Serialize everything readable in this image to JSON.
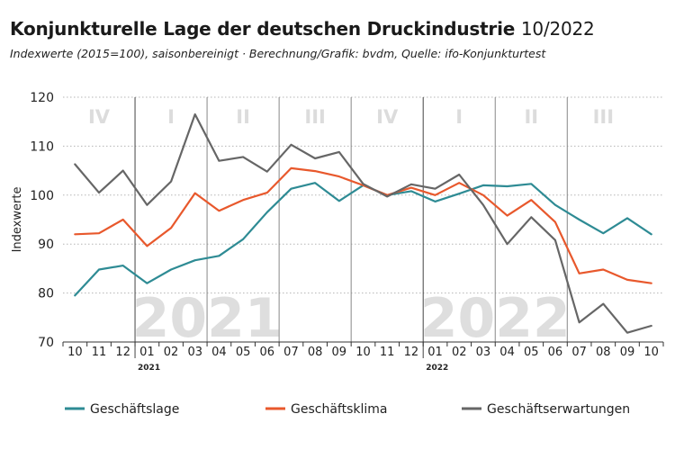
{
  "header": {
    "title": "Konjunkturelle Lage der deutschen Druckindustrie",
    "title_suffix": "10/2022",
    "subtitle": "Indexwerte (2015=100), saisonbereinigt · Berechnung/Grafik: bvdm, Quelle: ifo-Konjunkturtest"
  },
  "chart_data": {
    "type": "line",
    "title": "Konjunkturelle Lage der deutschen Druckindustrie 10/2022",
    "ylabel": "Indexwerte",
    "xlabel": "",
    "ylim": [
      70,
      120
    ],
    "yticks": [
      70,
      80,
      90,
      100,
      110,
      120
    ],
    "x": [
      "10",
      "11",
      "12",
      "01",
      "02",
      "03",
      "04",
      "05",
      "06",
      "07",
      "08",
      "09",
      "10",
      "11",
      "12",
      "01",
      "02",
      "03",
      "04",
      "05",
      "06",
      "07",
      "08",
      "09",
      "10"
    ],
    "year_labels": [
      {
        "label": "2021",
        "index": 3
      },
      {
        "label": "2022",
        "index": 15
      }
    ],
    "quarters": [
      "IV",
      "I",
      "II",
      "III",
      "IV",
      "I",
      "II",
      "III"
    ],
    "big_years": [
      "2021",
      "2022"
    ],
    "grid": "horizontal dotted",
    "legend_position": "bottom",
    "series": [
      {
        "name": "Geschäftslage",
        "color": "#2e8b94",
        "values": [
          79.5,
          84.8,
          85.6,
          82.0,
          84.8,
          86.7,
          87.6,
          91.0,
          96.5,
          101.3,
          102.5,
          98.8,
          102.0,
          100.0,
          100.8,
          98.7,
          100.3,
          102.0,
          101.8,
          102.3,
          98.0,
          95.0,
          92.2,
          95.3,
          92.0
        ]
      },
      {
        "name": "Geschäftsklima",
        "color": "#e8582c",
        "values": [
          92.0,
          92.2,
          95.0,
          89.6,
          93.3,
          100.4,
          96.8,
          99.0,
          100.5,
          105.5,
          104.9,
          103.8,
          102.0,
          100.0,
          101.5,
          100.0,
          102.5,
          100.0,
          95.8,
          99.0,
          94.5,
          84.0,
          84.8,
          82.7,
          82.0
        ]
      },
      {
        "name": "Geschäftserwartungen",
        "color": "#666666",
        "values": [
          106.3,
          100.5,
          105.0,
          98.0,
          102.8,
          116.5,
          107.0,
          107.8,
          104.8,
          110.3,
          107.5,
          108.8,
          102.3,
          99.7,
          102.2,
          101.3,
          104.2,
          98.0,
          90.0,
          95.5,
          90.8,
          74.0,
          77.8,
          71.9,
          73.3
        ]
      }
    ]
  }
}
